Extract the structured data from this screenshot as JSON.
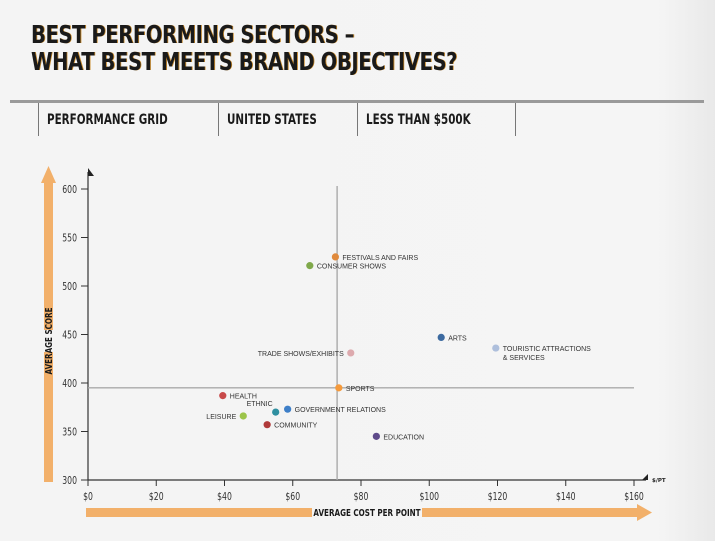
{
  "header": {
    "title_line1": "BEST PERFORMING SECTORS –",
    "title_line2": "WHAT BEST MEETS BRAND OBJECTIVES?"
  },
  "tabs": [
    {
      "label": "PERFORMANCE GRID"
    },
    {
      "label": "UNITED STATES"
    },
    {
      "label": "LESS THAN $500K"
    }
  ],
  "colors": {
    "accent_arrow": "#f2b06a",
    "axis": "#333333",
    "reference_line": "#aaaaaa"
  },
  "chart_data": {
    "type": "scatter",
    "title": "",
    "xlabel": "AVERAGE COST PER POINT",
    "ylabel": "AVERAGE SCORE",
    "x_unit": "$/PT",
    "xlim": [
      0,
      160
    ],
    "ylim": [
      300,
      600
    ],
    "x_ticks": [
      0,
      20,
      40,
      60,
      80,
      100,
      120,
      140,
      160
    ],
    "x_tick_labels": [
      "$0",
      "$20",
      "$40",
      "$60",
      "$80",
      "$100",
      "$120",
      "$140",
      "$160"
    ],
    "y_ticks": [
      300,
      350,
      400,
      450,
      500,
      550,
      600
    ],
    "y_tick_labels": [
      "300",
      "350",
      "400",
      "450",
      "500",
      "550",
      "600"
    ],
    "grid": false,
    "reference_lines": {
      "x": 73,
      "y": 395
    },
    "points": [
      {
        "name": "FESTIVALS AND FAIRS",
        "x": 72.5,
        "y": 530,
        "color": "#e08a3c",
        "label_side": "right"
      },
      {
        "name": "CONSUMER SHOWS",
        "x": 65,
        "y": 521,
        "color": "#7fa84a",
        "label_side": "right"
      },
      {
        "name": "ARTS",
        "x": 103.5,
        "y": 447,
        "color": "#3c6aa0",
        "label_side": "right"
      },
      {
        "name": "TOURISTIC ATTRACTIONS",
        "name2": "& SERVICES",
        "x": 119.5,
        "y": 436,
        "color": "#aebfdc",
        "label_side": "right"
      },
      {
        "name": "TRADE SHOWS/EXHIBITS",
        "x": 77,
        "y": 431,
        "color": "#ddaaae",
        "label_side": "left"
      },
      {
        "name": "SPORTS",
        "x": 73.5,
        "y": 395,
        "color": "#f59a3c",
        "label_side": "right"
      },
      {
        "name": "HEALTH",
        "x": 39.5,
        "y": 387,
        "color": "#c84a4a",
        "label_side": "right"
      },
      {
        "name": "ETHNIC",
        "x": 55,
        "y": 370,
        "color": "#2f8fa0",
        "label_side": "top-left"
      },
      {
        "name": "GOVERNMENT RELATIONS",
        "x": 58.5,
        "y": 373,
        "color": "#3e7fc8",
        "label_side": "right"
      },
      {
        "name": "LEISURE",
        "x": 45.5,
        "y": 366,
        "color": "#9cc44a",
        "label_side": "left"
      },
      {
        "name": "COMMUNITY",
        "x": 52.5,
        "y": 357,
        "color": "#b03a3a",
        "label_side": "right"
      },
      {
        "name": "EDUCATION",
        "x": 84.5,
        "y": 345,
        "color": "#5e4a8a",
        "label_side": "right"
      }
    ]
  }
}
